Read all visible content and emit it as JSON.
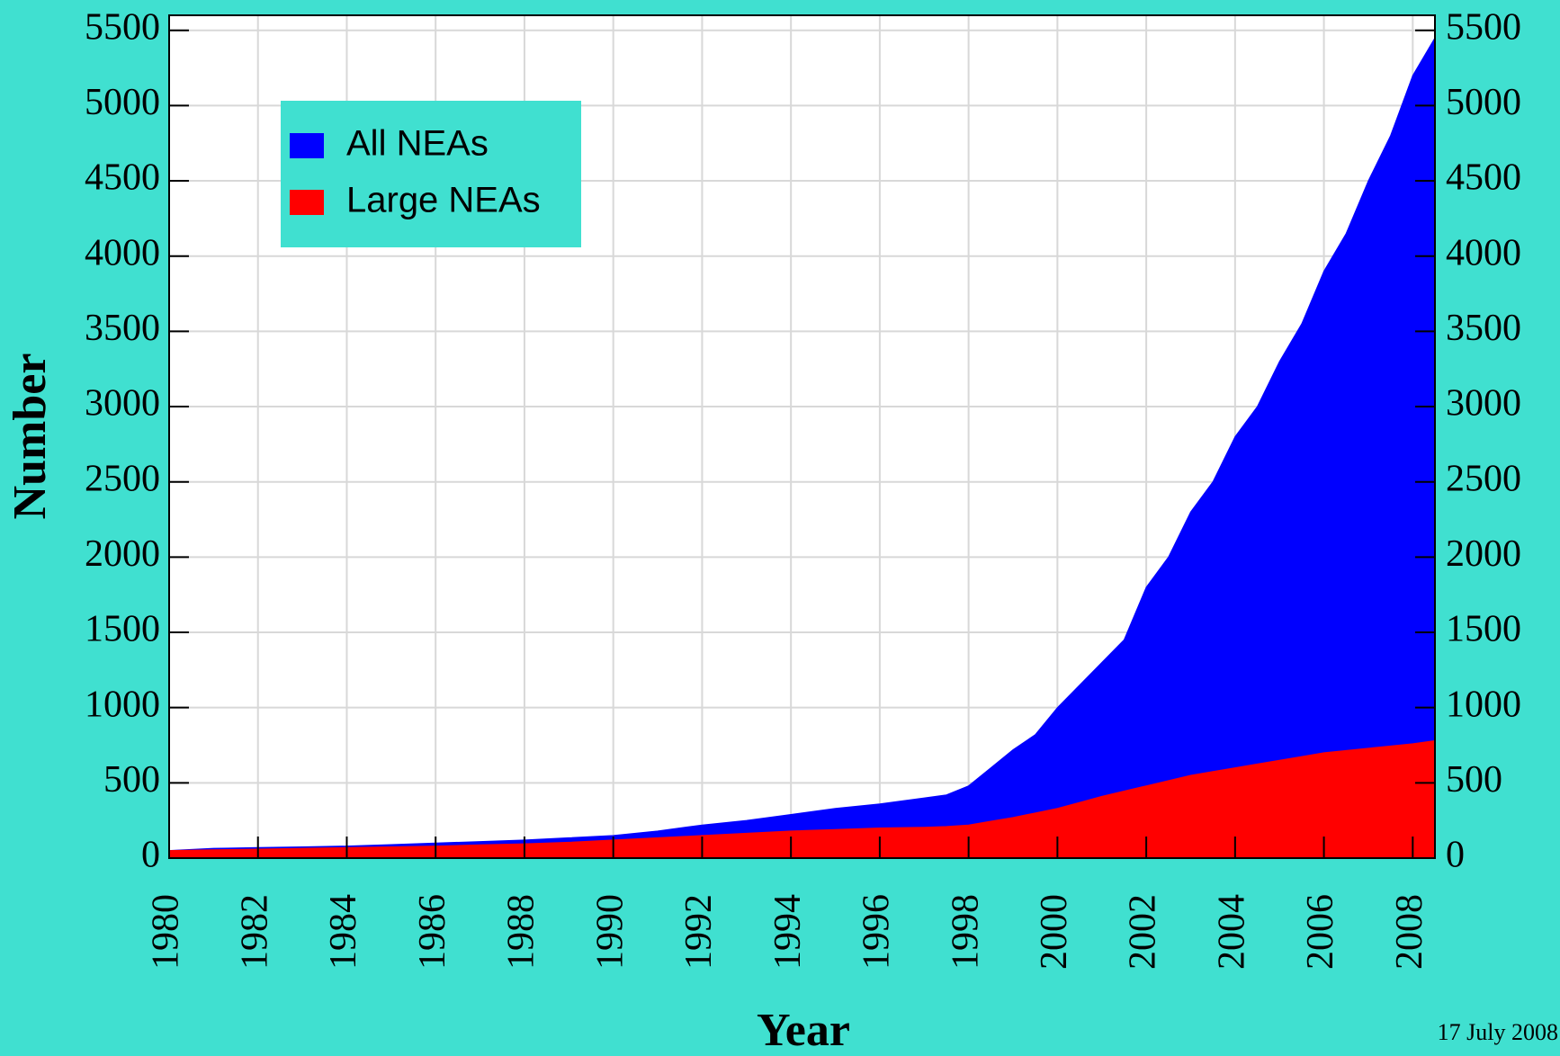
{
  "chart_data": {
    "type": "area",
    "xlabel": "Year",
    "ylabel": "Number",
    "annotation": "17 July 2008",
    "x": [
      1980,
      1981,
      1982,
      1983,
      1984,
      1985,
      1986,
      1987,
      1988,
      1989,
      1990,
      1991,
      1992,
      1993,
      1994,
      1995,
      1996,
      1997,
      1997.5,
      1998,
      1998.5,
      1999,
      1999.5,
      2000,
      2000.5,
      2001,
      2001.5,
      2002,
      2002.5,
      2003,
      2003.5,
      2004,
      2004.5,
      2005,
      2005.5,
      2006,
      2006.5,
      2007,
      2007.5,
      2008,
      2008.5
    ],
    "series": [
      {
        "name": "All NEAs",
        "color": "#0000ff",
        "values": [
          50,
          65,
          70,
          75,
          80,
          90,
          100,
          110,
          120,
          135,
          150,
          180,
          220,
          250,
          290,
          330,
          360,
          400,
          420,
          480,
          600,
          720,
          820,
          1000,
          1150,
          1300,
          1450,
          1800,
          2000,
          2300,
          2500,
          2800,
          3000,
          3300,
          3550,
          3900,
          4150,
          4500,
          4800,
          5200,
          5450
        ]
      },
      {
        "name": "Large NEAs",
        "color": "#ff0000",
        "values": [
          50,
          55,
          60,
          65,
          70,
          75,
          80,
          88,
          95,
          105,
          120,
          135,
          150,
          165,
          180,
          190,
          200,
          205,
          210,
          220,
          245,
          270,
          300,
          330,
          370,
          410,
          445,
          480,
          515,
          550,
          575,
          600,
          625,
          650,
          675,
          700,
          715,
          730,
          745,
          760,
          780
        ]
      }
    ],
    "xlim": [
      1980,
      2008.5
    ],
    "xticks": [
      1980,
      1982,
      1984,
      1986,
      1988,
      1990,
      1992,
      1994,
      1996,
      1998,
      2000,
      2002,
      2004,
      2006,
      2008
    ],
    "ylim": [
      0,
      5600
    ],
    "yticks": [
      0,
      500,
      1000,
      1500,
      2000,
      2500,
      3000,
      3500,
      4000,
      4500,
      5000,
      5500
    ],
    "grid": true,
    "legend": "upper left"
  }
}
